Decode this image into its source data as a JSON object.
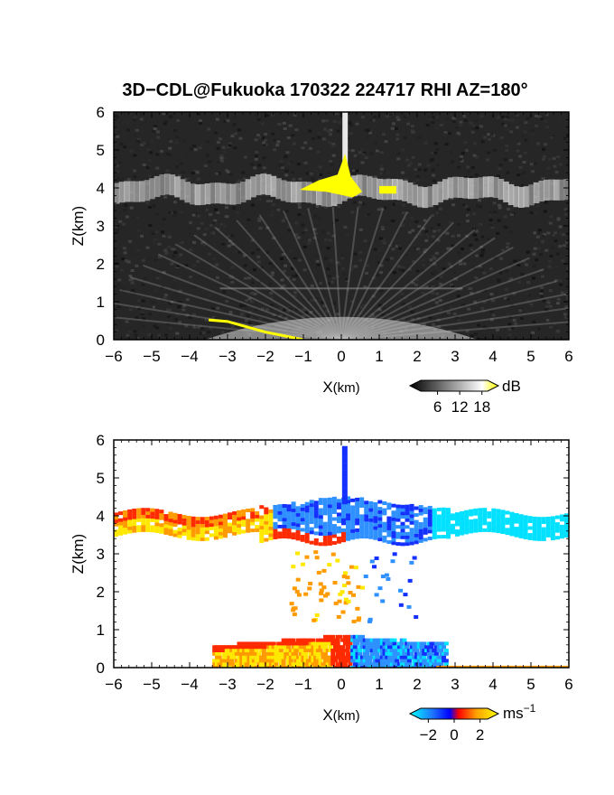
{
  "title": "3D−CDL@Fukuoka 170322 224717 RHI AZ=180°",
  "chart_data": [
    {
      "type": "heatmap",
      "quantity": "backscatter intensity",
      "xlabel_main": "X",
      "xlabel_unit": "(km)",
      "ylabel": "Z(km)",
      "xlim": [
        -6,
        6
      ],
      "ylim": [
        0,
        6
      ],
      "xticks": [
        -6,
        -5,
        -4,
        -3,
        -2,
        -1,
        0,
        1,
        2,
        3,
        4,
        5,
        6
      ],
      "yticks": [
        0,
        1,
        2,
        3,
        4,
        5,
        6
      ],
      "colorbar": {
        "unit": "dB",
        "ticks": [
          6,
          12,
          18
        ],
        "range": [
          0,
          21
        ],
        "colors": [
          "#000000",
          "#ffffff",
          "#ffff00"
        ]
      },
      "features": {
        "cloud_layer_base_km": 3.4,
        "cloud_layer_top_km": 4.3,
        "strong_echo_color": "#ffff00",
        "surface_echo_x_km": [
          -3.5,
          -1.0
        ],
        "vertical_spike_x_km": 0.1
      }
    },
    {
      "type": "heatmap",
      "quantity": "radial velocity",
      "xlabel_main": "X",
      "xlabel_unit": "(km)",
      "ylabel": "Z(km)",
      "xlim": [
        -6,
        6
      ],
      "ylim": [
        0,
        6
      ],
      "xticks": [
        -6,
        -5,
        -4,
        -3,
        -2,
        -1,
        0,
        1,
        2,
        3,
        4,
        5,
        6
      ],
      "yticks": [
        0,
        1,
        2,
        3,
        4,
        5,
        6
      ],
      "colorbar": {
        "unit": "ms",
        "unit_exp": "−1",
        "ticks": [
          -2,
          0,
          2
        ],
        "ticklabels": [
          "−2",
          "0",
          "2"
        ],
        "range": [
          -3,
          3
        ],
        "colors": [
          "#00ffff",
          "#0000ff",
          "#ff0000",
          "#ffa500",
          "#ffff00"
        ]
      },
      "features": {
        "cloud_layer_base_km": 3.4,
        "cloud_layer_top_km": 4.5,
        "negative_side": "x > 0",
        "positive_side": "x < 0",
        "low_layer_top_km": 0.9
      }
    }
  ]
}
